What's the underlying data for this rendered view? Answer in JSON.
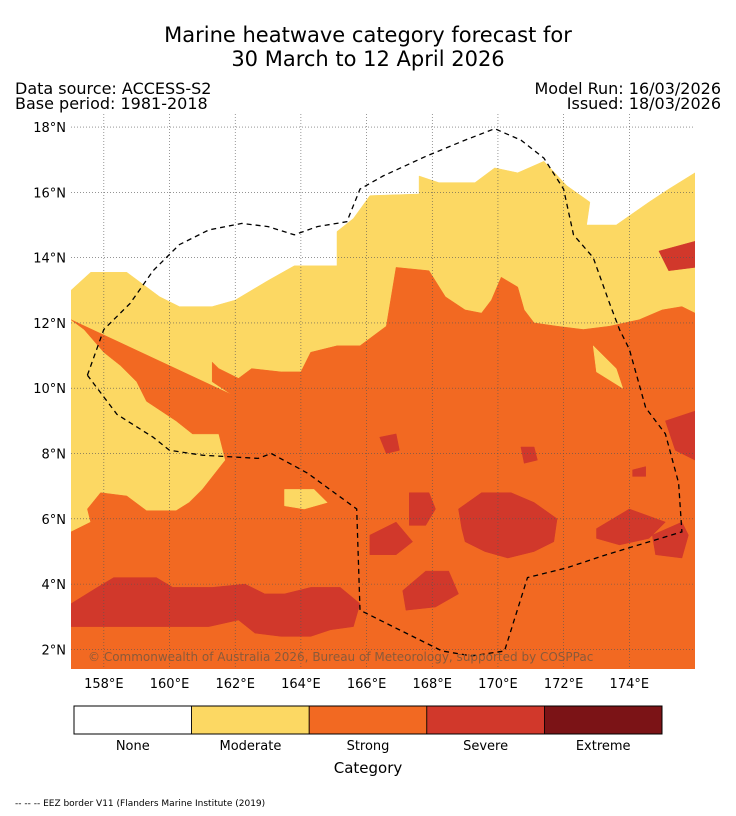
{
  "header": {
    "title_line1": "Marine heatwave category forecast for",
    "title_line2": "30 March to 12 April 2026",
    "data_source": "Data source: ACCESS-S2",
    "base_period": "Base period: 1981-2018",
    "model_run": "Model Run: 16/03/2026",
    "issued": "Issued: 18/03/2026"
  },
  "map": {
    "lon_range": [
      157,
      176
    ],
    "lat_range": [
      1.4,
      18.4
    ],
    "lon_ticks": [
      "158°E",
      "160°E",
      "162°E",
      "164°E",
      "166°E",
      "168°E",
      "170°E",
      "172°E",
      "174°E"
    ],
    "lon_values": [
      158,
      160,
      162,
      164,
      166,
      168,
      170,
      172,
      174
    ],
    "lat_ticks": [
      "18°N",
      "16°N",
      "14°N",
      "12°N",
      "10°N",
      "8°N",
      "6°N",
      "4°N",
      "2°N"
    ],
    "lat_values": [
      18,
      16,
      14,
      12,
      10,
      8,
      6,
      4,
      2
    ],
    "gridlines": true,
    "copyright": "© Commonwealth of Australia 2026, Bureau of Meteorology, supported by COSPPac",
    "eez_border": [
      [
        157.5,
        10.4
      ],
      [
        158,
        11.8
      ],
      [
        158.8,
        12.6
      ],
      [
        159.5,
        13.6
      ],
      [
        160.3,
        14.4
      ],
      [
        161.2,
        14.85
      ],
      [
        162.2,
        15.05
      ],
      [
        163,
        14.95
      ],
      [
        163.8,
        14.7
      ],
      [
        164.5,
        14.95
      ],
      [
        165.4,
        15.1
      ],
      [
        165.8,
        16.1
      ],
      [
        166.5,
        16.5
      ],
      [
        167.8,
        17.1
      ],
      [
        169,
        17.6
      ],
      [
        169.9,
        17.95
      ],
      [
        170.7,
        17.6
      ],
      [
        171.4,
        17.05
      ],
      [
        172,
        16.1
      ],
      [
        172.3,
        14.7
      ],
      [
        172.9,
        14.0
      ],
      [
        173.4,
        12.6
      ],
      [
        173.7,
        11.8
      ],
      [
        174,
        11.2
      ],
      [
        174.5,
        9.4
      ],
      [
        175.1,
        8.6
      ],
      [
        175.5,
        7.1
      ],
      [
        175.6,
        5.6
      ],
      [
        173.3,
        4.9
      ],
      [
        172.1,
        4.5
      ],
      [
        170.9,
        4.2
      ],
      [
        170.2,
        1.95
      ],
      [
        169.2,
        1.8
      ],
      [
        168.3,
        1.95
      ],
      [
        166.8,
        2.7
      ],
      [
        165.8,
        3.2
      ],
      [
        165.7,
        6.3
      ],
      [
        164.2,
        7.4
      ],
      [
        163.1,
        8.0
      ],
      [
        162.7,
        7.85
      ],
      [
        161.0,
        7.95
      ],
      [
        160,
        8.1
      ],
      [
        159.5,
        8.5
      ],
      [
        158.4,
        9.2
      ],
      [
        157.5,
        10.4
      ]
    ],
    "regions": [
      {
        "category": "Moderate",
        "points": [
          [
            157,
            13
          ],
          [
            157.6,
            13.55
          ],
          [
            158.7,
            13.55
          ],
          [
            159.7,
            12.8
          ],
          [
            160.3,
            12.5
          ],
          [
            161.3,
            12.5
          ],
          [
            162,
            12.7
          ],
          [
            163,
            13.3
          ],
          [
            163.8,
            13.75
          ],
          [
            165.1,
            13.75
          ],
          [
            165.1,
            14.8
          ],
          [
            165.6,
            15.2
          ],
          [
            166.1,
            15.9
          ],
          [
            167.6,
            15.95
          ],
          [
            167.6,
            16.5
          ],
          [
            168.2,
            16.3
          ],
          [
            169.3,
            16.3
          ],
          [
            169.9,
            16.75
          ],
          [
            170.6,
            16.6
          ],
          [
            171.4,
            16.95
          ],
          [
            172.1,
            16.2
          ],
          [
            172.8,
            15.7
          ],
          [
            172.7,
            15.0
          ],
          [
            173.6,
            15.0
          ],
          [
            174.6,
            15.7
          ],
          [
            175.2,
            16.1
          ],
          [
            176,
            16.6
          ],
          [
            176,
            1.4
          ],
          [
            157,
            1.4
          ]
        ]
      },
      {
        "category": "Strong",
        "points": [
          [
            157,
            12.1
          ],
          [
            157.4,
            11.8
          ],
          [
            158,
            11.1
          ],
          [
            158.5,
            10.7
          ],
          [
            159,
            10.2
          ],
          [
            159.3,
            9.6
          ],
          [
            160.2,
            9.0
          ],
          [
            160.7,
            8.6
          ],
          [
            161.5,
            8.6
          ],
          [
            161.7,
            7.8
          ],
          [
            161.0,
            6.9
          ],
          [
            160.6,
            6.5
          ],
          [
            160.2,
            6.25
          ],
          [
            159.3,
            6.25
          ],
          [
            158.7,
            6.7
          ],
          [
            157.9,
            6.8
          ],
          [
            157.5,
            6.3
          ],
          [
            157.6,
            5.9
          ],
          [
            157,
            5.6
          ],
          [
            157,
            1.4
          ],
          [
            176,
            1.4
          ],
          [
            176,
            12.3
          ],
          [
            175.6,
            12.5
          ],
          [
            175,
            12.4
          ],
          [
            174.3,
            12.1
          ],
          [
            173.4,
            11.9
          ],
          [
            172.6,
            11.8
          ],
          [
            171.8,
            11.9
          ],
          [
            171.1,
            12.0
          ],
          [
            170.8,
            12.4
          ],
          [
            170.6,
            13.1
          ],
          [
            170.1,
            13.4
          ],
          [
            169.8,
            12.7
          ],
          [
            169.5,
            12.3
          ],
          [
            169,
            12.4
          ],
          [
            168.4,
            12.8
          ],
          [
            167.9,
            13.6
          ],
          [
            166.9,
            13.7
          ],
          [
            166.6,
            11.9
          ],
          [
            165.8,
            11.3
          ],
          [
            165.1,
            11.3
          ],
          [
            164.3,
            11.1
          ],
          [
            164,
            10.5
          ],
          [
            163.4,
            10.5
          ],
          [
            162.5,
            10.6
          ],
          [
            162.1,
            10.3
          ],
          [
            161.5,
            10.6
          ],
          [
            161.3,
            10.8
          ],
          [
            161.3,
            10.2
          ],
          [
            161.9,
            9.8
          ]
        ]
      },
      {
        "category": "Severe",
        "points": [
          [
            157,
            3.4
          ],
          [
            157.8,
            3.9
          ],
          [
            158.3,
            4.2
          ],
          [
            159.6,
            4.2
          ],
          [
            160.1,
            3.9
          ],
          [
            161.3,
            3.9
          ],
          [
            162.3,
            4.0
          ],
          [
            162.9,
            3.7
          ],
          [
            163.5,
            3.7
          ],
          [
            164.3,
            3.9
          ],
          [
            165.2,
            3.9
          ],
          [
            165.8,
            3.4
          ],
          [
            165.6,
            2.7
          ],
          [
            164.9,
            2.6
          ],
          [
            164.3,
            2.4
          ],
          [
            163.4,
            2.4
          ],
          [
            162.6,
            2.5
          ],
          [
            162.1,
            2.9
          ],
          [
            161.2,
            2.7
          ],
          [
            160.6,
            2.7
          ],
          [
            159.9,
            2.7
          ],
          [
            158.9,
            2.7
          ],
          [
            157,
            2.7
          ]
        ]
      },
      {
        "category": "Severe",
        "points": [
          [
            168.8,
            6.3
          ],
          [
            169.5,
            6.8
          ],
          [
            170.4,
            6.8
          ],
          [
            171.1,
            6.5
          ],
          [
            171.8,
            6.0
          ],
          [
            171.7,
            5.3
          ],
          [
            171.1,
            5.0
          ],
          [
            170.3,
            4.8
          ],
          [
            169.6,
            5.0
          ],
          [
            169,
            5.3
          ],
          [
            168.9,
            5.7
          ]
        ]
      },
      {
        "category": "Severe",
        "points": [
          [
            167.3,
            6.8
          ],
          [
            167.9,
            6.8
          ],
          [
            168.1,
            6.3
          ],
          [
            167.8,
            5.8
          ],
          [
            167.3,
            5.8
          ]
        ]
      },
      {
        "category": "Severe",
        "points": [
          [
            166.1,
            5.5
          ],
          [
            166.9,
            5.9
          ],
          [
            167.4,
            5.3
          ],
          [
            166.9,
            4.9
          ],
          [
            166.1,
            4.9
          ]
        ]
      },
      {
        "category": "Severe",
        "points": [
          [
            167.1,
            3.8
          ],
          [
            167.8,
            4.4
          ],
          [
            168.5,
            4.4
          ],
          [
            168.8,
            3.7
          ],
          [
            168.1,
            3.3
          ],
          [
            167.2,
            3.2
          ]
        ]
      },
      {
        "category": "Severe",
        "points": [
          [
            173.0,
            5.7
          ],
          [
            174.0,
            6.3
          ],
          [
            175.1,
            5.9
          ],
          [
            174.6,
            5.4
          ],
          [
            173.7,
            5.2
          ],
          [
            173.0,
            5.4
          ]
        ]
      },
      {
        "category": "Severe",
        "points": [
          [
            174.7,
            5.5
          ],
          [
            175.6,
            5.9
          ],
          [
            175.8,
            5.5
          ],
          [
            175.6,
            4.8
          ],
          [
            174.8,
            4.9
          ]
        ]
      },
      {
        "category": "Severe",
        "points": [
          [
            175.1,
            9.0
          ],
          [
            176,
            9.3
          ],
          [
            176,
            7.8
          ],
          [
            175.4,
            8.1
          ]
        ]
      },
      {
        "category": "Severe",
        "points": [
          [
            174.9,
            14.2
          ],
          [
            176,
            14.5
          ],
          [
            176,
            13.7
          ],
          [
            175.2,
            13.6
          ]
        ]
      },
      {
        "category": "Severe",
        "points": [
          [
            170.7,
            8.2
          ],
          [
            171.1,
            8.2
          ],
          [
            171.2,
            7.8
          ],
          [
            170.8,
            7.7
          ]
        ]
      },
      {
        "category": "Severe",
        "points": [
          [
            166.4,
            8.5
          ],
          [
            166.9,
            8.6
          ],
          [
            167.0,
            8.1
          ],
          [
            166.6,
            8.0
          ]
        ]
      },
      {
        "category": "Severe",
        "points": [
          [
            174.1,
            7.5
          ],
          [
            174.5,
            7.6
          ],
          [
            174.5,
            7.3
          ],
          [
            174.1,
            7.3
          ]
        ]
      },
      {
        "category": "Moderate",
        "points": [
          [
            163.5,
            6.9
          ],
          [
            164.4,
            6.9
          ],
          [
            164.8,
            6.5
          ],
          [
            164.1,
            6.3
          ],
          [
            163.5,
            6.4
          ]
        ]
      },
      {
        "category": "Moderate",
        "points": [
          [
            172.9,
            11.3
          ],
          [
            173.0,
            10.5
          ],
          [
            173.8,
            10.0
          ],
          [
            173.6,
            10.6
          ]
        ]
      },
      {
        "category": "None",
        "points": [
          [
            173.0,
            18.0
          ],
          [
            173.6,
            18.0
          ],
          [
            173.6,
            17.6
          ],
          [
            172.9,
            17.6
          ]
        ]
      },
      {
        "category": "None",
        "points": [
          [
            174.6,
            18.2
          ],
          [
            175.3,
            17.9
          ],
          [
            175.2,
            17.6
          ],
          [
            174.7,
            17.3
          ]
        ]
      }
    ]
  },
  "legend": {
    "title": "Category",
    "items": [
      {
        "label": "None",
        "color": "#ffffff"
      },
      {
        "label": "Moderate",
        "color": "#fcd863"
      },
      {
        "label": "Strong",
        "color": "#f26922"
      },
      {
        "label": "Severe",
        "color": "#d1382b"
      },
      {
        "label": "Extreme",
        "color": "#7b1316"
      }
    ]
  },
  "footnote": "-- -- -- EEZ border V11 (Flanders Marine Institute (2019)"
}
